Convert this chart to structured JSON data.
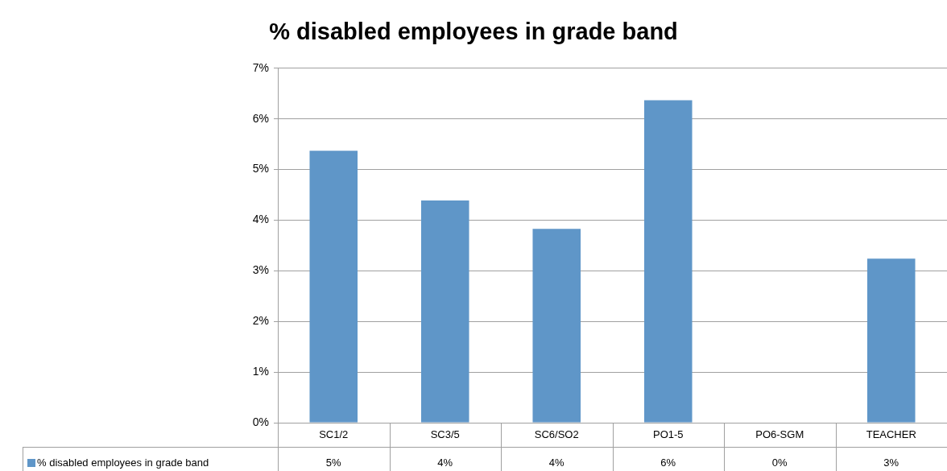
{
  "chart_data": {
    "type": "bar",
    "title": "% disabled employees in grade band",
    "categories": [
      "SC1/2",
      "SC3/5",
      "SC6/SO2",
      "PO1-5",
      "PO6-SGM",
      "TEACHER"
    ],
    "series": [
      {
        "name": "% disabled employees in grade band",
        "color": "#5f96c8",
        "values": [
          5.37,
          4.39,
          3.83,
          6.37,
          0,
          3.24
        ],
        "value_labels": [
          "5%",
          "4%",
          "4%",
          "6%",
          "0%",
          "3%"
        ]
      }
    ],
    "ylim": [
      0,
      7
    ],
    "yticks": [
      {
        "value": 0,
        "label": "0%"
      },
      {
        "value": 1,
        "label": "1%"
      },
      {
        "value": 2,
        "label": "2%"
      },
      {
        "value": 3,
        "label": "3%"
      },
      {
        "value": 4,
        "label": "4%"
      },
      {
        "value": 5,
        "label": "5%"
      },
      {
        "value": 6,
        "label": "6%"
      },
      {
        "value": 7,
        "label": "7%"
      }
    ],
    "grid": "y",
    "legend": "bottom left"
  }
}
